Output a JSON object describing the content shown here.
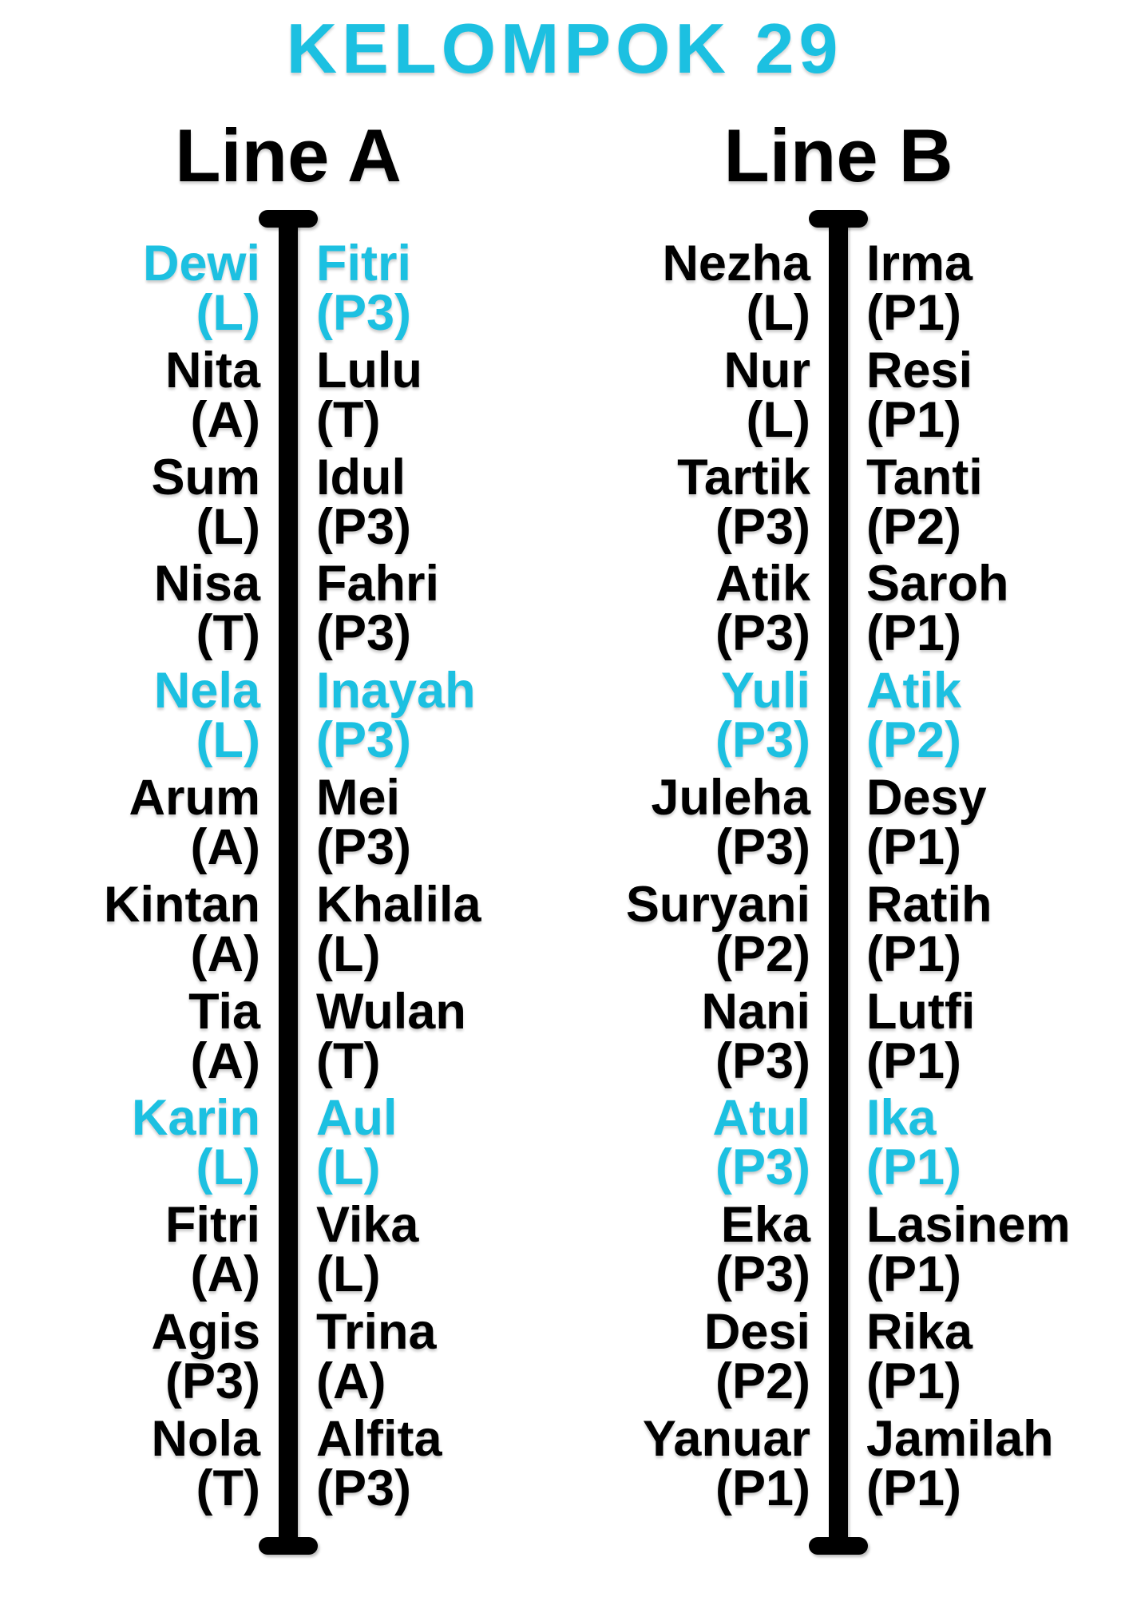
{
  "title": "KELOMPOK 29",
  "colors": {
    "accent": "#1cc0e1",
    "text": "#000000",
    "background": "#ffffff"
  },
  "lines": [
    {
      "label": "Line A",
      "rows": [
        {
          "left": {
            "name": "Dewi",
            "tag": "(L)"
          },
          "right": {
            "name": "Fitri",
            "tag": "(P3)"
          },
          "highlight": true
        },
        {
          "left": {
            "name": "Nita",
            "tag": "(A)"
          },
          "right": {
            "name": "Lulu",
            "tag": "(T)"
          },
          "highlight": false
        },
        {
          "left": {
            "name": "Sum",
            "tag": "(L)"
          },
          "right": {
            "name": "Idul",
            "tag": "(P3)"
          },
          "highlight": false
        },
        {
          "left": {
            "name": "Nisa",
            "tag": "(T)"
          },
          "right": {
            "name": "Fahri",
            "tag": "(P3)"
          },
          "highlight": false
        },
        {
          "left": {
            "name": "Nela",
            "tag": "(L)"
          },
          "right": {
            "name": "Inayah",
            "tag": "(P3)"
          },
          "highlight": true
        },
        {
          "left": {
            "name": "Arum",
            "tag": "(A)"
          },
          "right": {
            "name": "Mei",
            "tag": "(P3)"
          },
          "highlight": false
        },
        {
          "left": {
            "name": "Kintan",
            "tag": "(A)"
          },
          "right": {
            "name": "Khalila",
            "tag": "(L)"
          },
          "highlight": false
        },
        {
          "left": {
            "name": "Tia",
            "tag": "(A)"
          },
          "right": {
            "name": "Wulan",
            "tag": "(T)"
          },
          "highlight": false
        },
        {
          "left": {
            "name": "Karin",
            "tag": "(L)"
          },
          "right": {
            "name": "Aul",
            "tag": "(L)"
          },
          "highlight": true
        },
        {
          "left": {
            "name": "Fitri",
            "tag": "(A)"
          },
          "right": {
            "name": "Vika",
            "tag": "(L)"
          },
          "highlight": false
        },
        {
          "left": {
            "name": "Agis",
            "tag": "(P3)"
          },
          "right": {
            "name": "Trina",
            "tag": "(A)"
          },
          "highlight": false
        },
        {
          "left": {
            "name": "Nola",
            "tag": "(T)"
          },
          "right": {
            "name": "Alfita",
            "tag": "(P3)"
          },
          "highlight": false
        }
      ]
    },
    {
      "label": "Line B",
      "rows": [
        {
          "left": {
            "name": "Nezha",
            "tag": "(L)"
          },
          "right": {
            "name": "Irma",
            "tag": "(P1)"
          },
          "highlight": false
        },
        {
          "left": {
            "name": "Nur",
            "tag": "(L)"
          },
          "right": {
            "name": "Resi",
            "tag": "(P1)"
          },
          "highlight": false
        },
        {
          "left": {
            "name": "Tartik",
            "tag": "(P3)"
          },
          "right": {
            "name": "Tanti",
            "tag": "(P2)"
          },
          "highlight": false
        },
        {
          "left": {
            "name": "Atik",
            "tag": "(P3)"
          },
          "right": {
            "name": "Saroh",
            "tag": "(P1)"
          },
          "highlight": false
        },
        {
          "left": {
            "name": "Yuli",
            "tag": "(P3)"
          },
          "right": {
            "name": "Atik",
            "tag": "(P2)"
          },
          "highlight": true
        },
        {
          "left": {
            "name": "Juleha",
            "tag": "(P3)"
          },
          "right": {
            "name": "Desy",
            "tag": "(P1)"
          },
          "highlight": false
        },
        {
          "left": {
            "name": "Suryani",
            "tag": "(P2)"
          },
          "right": {
            "name": "Ratih",
            "tag": "(P1)"
          },
          "highlight": false
        },
        {
          "left": {
            "name": "Nani",
            "tag": "(P3)"
          },
          "right": {
            "name": "Lutfi",
            "tag": "(P1)"
          },
          "highlight": false
        },
        {
          "left": {
            "name": "Atul",
            "tag": "(P3)"
          },
          "right": {
            "name": "Ika",
            "tag": "(P1)"
          },
          "highlight": true
        },
        {
          "left": {
            "name": "Eka",
            "tag": "(P3)"
          },
          "right": {
            "name": "Lasinem",
            "tag": "(P1)"
          },
          "highlight": false
        },
        {
          "left": {
            "name": "Desi",
            "tag": "(P2)"
          },
          "right": {
            "name": "Rika",
            "tag": "(P1)"
          },
          "highlight": false
        },
        {
          "left": {
            "name": "Yanuar",
            "tag": "(P1)"
          },
          "right": {
            "name": "Jamilah",
            "tag": "(P1)"
          },
          "highlight": false
        }
      ]
    }
  ]
}
